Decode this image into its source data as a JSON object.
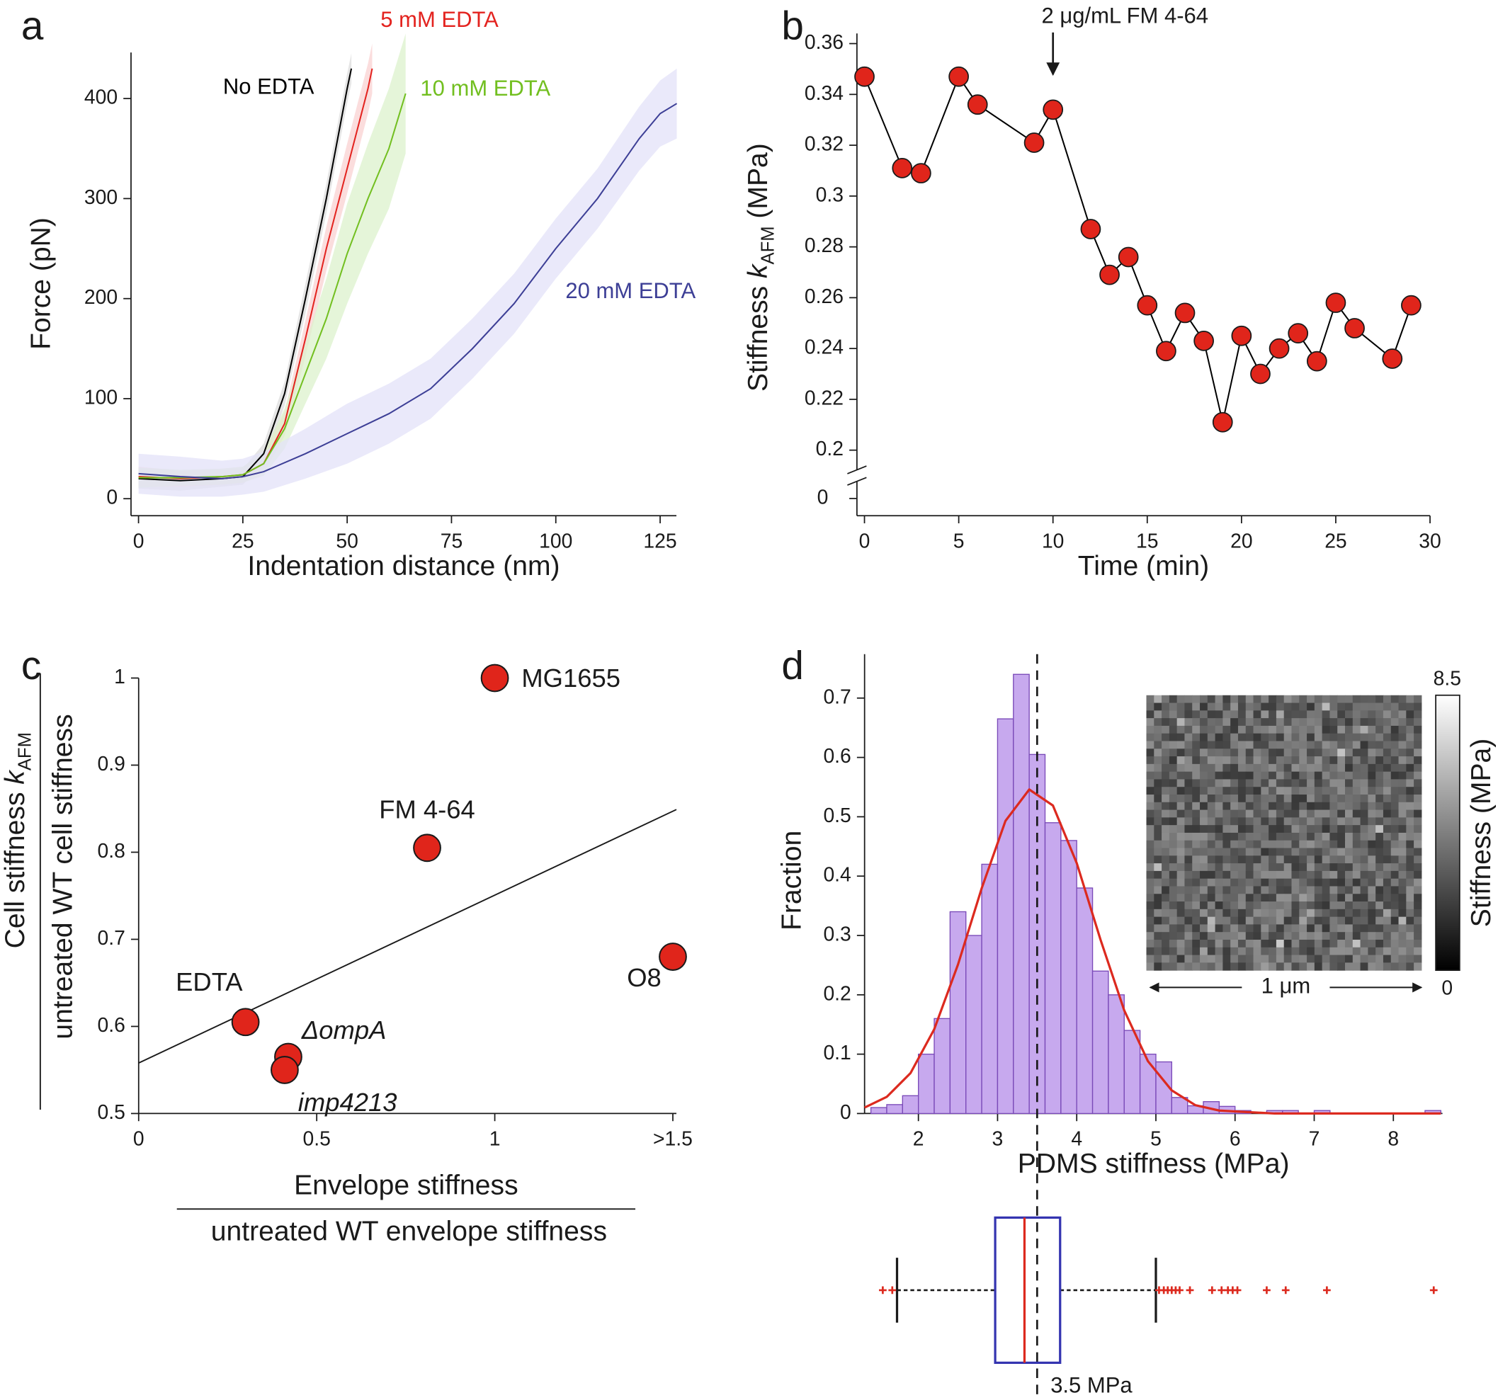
{
  "chart_data": [
    {
      "type": "line",
      "panel_label": "a",
      "xlabel": "Indentation distance (nm)",
      "ylabel": "Force (pN)",
      "xlim": [
        -1.8,
        128.9
      ],
      "ylim": [
        -17,
        446
      ],
      "xticks": [
        0,
        25,
        50,
        75,
        100,
        125
      ],
      "yticks": [
        0,
        100,
        200,
        300,
        400
      ],
      "series": [
        {
          "name": "No EDTA",
          "color": "#000000",
          "band_color": "#dcdcdc",
          "x": [
            0,
            10,
            20,
            25,
            30,
            35,
            40,
            45,
            50,
            51
          ],
          "values": [
            20,
            18,
            20,
            22,
            45,
            105,
            200,
            300,
            410,
            430
          ],
          "errors": [
            10,
            10,
            8,
            8,
            10,
            12,
            15,
            15,
            15,
            15
          ]
        },
        {
          "name": "5 mM EDTA",
          "color": "#e3231f",
          "band_color": "#f9d2d2",
          "x": [
            0,
            10,
            20,
            25,
            30,
            35,
            40,
            45,
            50,
            55,
            56
          ],
          "values": [
            22,
            20,
            22,
            24,
            35,
            75,
            160,
            250,
            330,
            410,
            430
          ],
          "errors": [
            10,
            8,
            8,
            8,
            10,
            12,
            18,
            22,
            25,
            25,
            25
          ]
        },
        {
          "name": "10 mM EDTA",
          "color": "#72bf20",
          "band_color": "#dcf1cc",
          "x": [
            0,
            10,
            20,
            25,
            30,
            35,
            40,
            45,
            50,
            55,
            60,
            64
          ],
          "values": [
            21,
            21,
            22,
            24,
            35,
            70,
            125,
            180,
            245,
            300,
            350,
            405
          ],
          "errors": [
            10,
            8,
            8,
            8,
            12,
            20,
            30,
            40,
            50,
            55,
            60,
            60
          ]
        },
        {
          "name": "20 mM EDTA",
          "color": "#3d3f96",
          "band_color": "#e3e1f8",
          "x": [
            0,
            10,
            20,
            25,
            30,
            40,
            50,
            60,
            70,
            80,
            90,
            100,
            110,
            120,
            125,
            129
          ],
          "values": [
            25,
            22,
            20,
            22,
            27,
            45,
            65,
            85,
            110,
            150,
            195,
            250,
            300,
            360,
            385,
            395
          ],
          "errors": [
            20,
            20,
            18,
            18,
            20,
            25,
            30,
            30,
            30,
            30,
            30,
            30,
            30,
            32,
            33,
            35
          ]
        }
      ]
    },
    {
      "type": "line",
      "panel_label": "b",
      "xlabel": "Time (min)",
      "ylabel_parts": [
        "Stiffness",
        "k",
        "AFM",
        "(MPa)"
      ],
      "xlim": [
        -0.4,
        30
      ],
      "ylim": [
        0.193,
        0.364
      ],
      "xticks": [
        0,
        5,
        10,
        15,
        20,
        25,
        30
      ],
      "yticks": [
        0.2,
        0.22,
        0.24,
        0.26,
        0.28,
        0.3,
        0.32,
        0.34,
        0.36
      ],
      "axis_break": true,
      "y_break_tick": 0,
      "x": [
        0,
        2,
        3,
        5,
        6,
        9,
        10,
        12,
        13,
        14,
        15,
        16,
        17,
        18,
        19,
        20,
        21,
        22,
        23,
        24,
        25,
        26,
        28,
        29
      ],
      "values": [
        0.347,
        0.311,
        0.309,
        0.347,
        0.336,
        0.321,
        0.334,
        0.287,
        0.269,
        0.276,
        0.257,
        0.239,
        0.254,
        0.243,
        0.211,
        0.245,
        0.23,
        0.24,
        0.246,
        0.235,
        0.258,
        0.248,
        0.236,
        0.257
      ],
      "color": "#e0251b",
      "line_color": "#000000",
      "annotation": {
        "text": "2 μg/mL FM 4-64",
        "x": 10
      }
    },
    {
      "type": "scatter",
      "panel_label": "c",
      "xlabel_numerator": "Envelope stiffness",
      "xlabel_denominator": "untreated WT envelope stiffness",
      "ylabel_numerator": [
        "Cell stiffness",
        "k",
        "AFM"
      ],
      "ylabel_denominator": "untreated WT cell stiffness",
      "xlim": [
        0,
        1.51
      ],
      "ylim": [
        0.5,
        1.0
      ],
      "xticks": [
        0,
        0.5,
        1,
        {
          "value": 1.5,
          "label": ">1.5"
        }
      ],
      "yticks": [
        0.5,
        0.6,
        0.7,
        0.8,
        0.9,
        1
      ],
      "x": [
        1.0,
        0.81,
        0.3,
        0.42,
        0.41,
        1.5
      ],
      "values": [
        1.0,
        0.805,
        0.605,
        0.565,
        0.55,
        0.68
      ],
      "point_labels": [
        "MG1655",
        "FM 4-64",
        "EDTA",
        "ΔompA",
        "imp4213",
        "O8"
      ],
      "italic_labels": [
        false,
        false,
        false,
        true,
        true,
        false
      ],
      "color": "#e0251b",
      "fit_line": {
        "x": [
          0,
          1.51
        ],
        "y": [
          0.558,
          0.849
        ]
      }
    },
    {
      "type": "histogram",
      "panel_label": "d",
      "xlabel": "PDMS stiffness (MPa)",
      "ylabel": "Fraction",
      "xlim": [
        1.32,
        8.62
      ],
      "ylim": [
        0,
        0.774
      ],
      "xticks": [
        2,
        3,
        4,
        5,
        6,
        7,
        8
      ],
      "yticks": [
        0,
        0.1,
        0.2,
        0.3,
        0.4,
        0.5,
        0.6,
        0.7
      ],
      "bins": [
        1.4,
        1.6,
        1.8,
        2.0,
        2.2,
        2.4,
        2.6,
        2.8,
        3.0,
        3.2,
        3.4,
        3.6,
        3.8,
        4.0,
        4.2,
        4.4,
        4.6,
        4.8,
        5.0,
        5.2,
        5.4,
        5.6,
        5.8,
        6.0,
        6.2,
        6.4,
        6.6,
        6.8,
        7.0,
        7.2,
        7.4,
        7.6,
        7.8,
        8.0,
        8.2,
        8.4,
        8.6
      ],
      "counts": [
        0.01,
        0.015,
        0.03,
        0.1,
        0.16,
        0.34,
        0.3,
        0.42,
        0.665,
        0.74,
        0.605,
        0.49,
        0.46,
        0.38,
        0.24,
        0.2,
        0.14,
        0.1,
        0.087,
        0.027,
        0.013,
        0.02,
        0.012,
        0.005,
        0,
        0.005,
        0.005,
        0,
        0.005,
        0,
        0,
        0,
        0,
        0,
        0,
        0.005
      ],
      "color": "#c7a9ee",
      "edge_color": "#7a4ab8",
      "fit": {
        "color": "#dc2a1f",
        "x": [
          1.3,
          1.6,
          1.9,
          2.2,
          2.5,
          2.8,
          3.1,
          3.4,
          3.7,
          4.0,
          4.3,
          4.6,
          4.9,
          5.2,
          5.5,
          5.8,
          6.5,
          8.6
        ],
        "y": [
          0.01,
          0.028,
          0.068,
          0.142,
          0.251,
          0.38,
          0.493,
          0.546,
          0.519,
          0.422,
          0.293,
          0.174,
          0.088,
          0.039,
          0.014,
          0.005,
          0,
          0
        ]
      },
      "reference": {
        "value": 3.5,
        "label": "3.5 MPa"
      },
      "boxplot": {
        "whisker_low": 1.73,
        "q1": 2.97,
        "median": 3.34,
        "q3": 3.79,
        "whisker_high": 5.0,
        "box_color": "#3434b0",
        "median_color": "#dc2a1f",
        "outliers": [
          1.55,
          1.67,
          5.04,
          5.1,
          5.15,
          5.2,
          5.25,
          5.3,
          5.43,
          5.71,
          5.83,
          5.91,
          5.97,
          6.03,
          6.4,
          6.64,
          7.16,
          8.51
        ]
      },
      "inset": {
        "colorbar": {
          "lim": [
            0,
            8.5
          ],
          "ticks": [
            0,
            8.5
          ],
          "label": "Stiffness (MPa)"
        },
        "scale_bar": "1 μm"
      }
    }
  ]
}
